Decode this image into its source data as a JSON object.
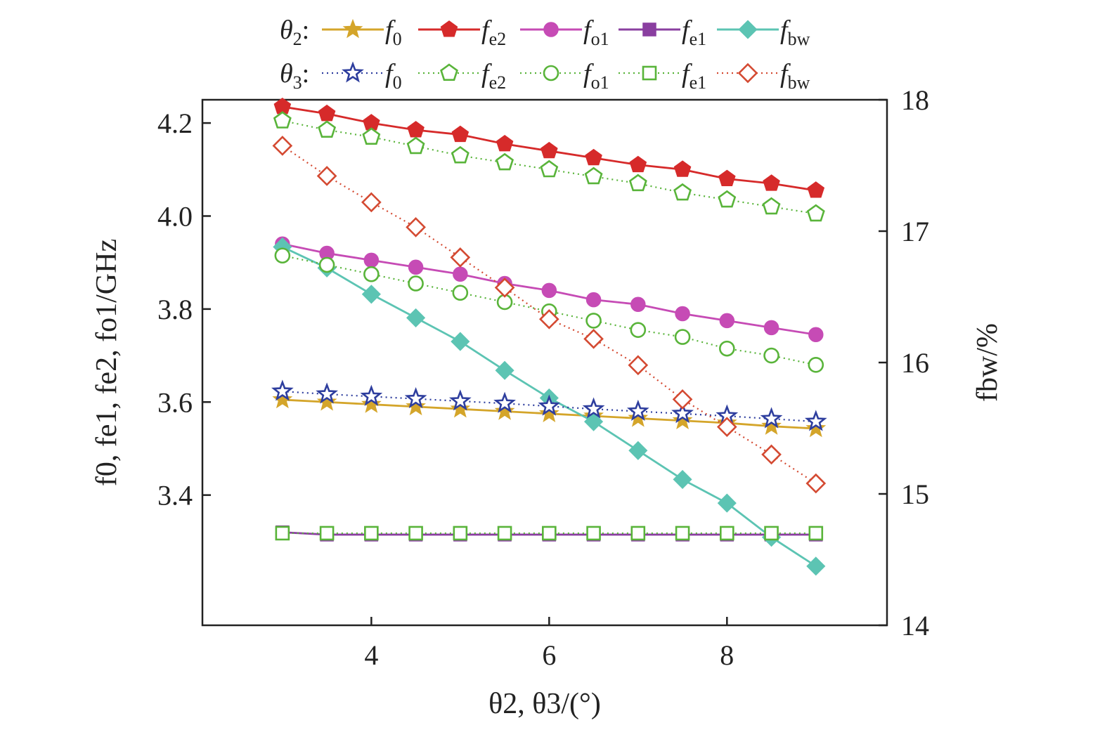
{
  "chart_data": {
    "type": "line",
    "title": "",
    "xlabel": "θ2, θ3/(°)",
    "ylabel_left": "f0, fe1, fe2, fo1/GHz",
    "ylabel_right": "fbw/%",
    "xlim": [
      2.1,
      9.8
    ],
    "ylim_left": [
      3.12,
      4.25
    ],
    "ylim_right": [
      14,
      18
    ],
    "x_ticks": [
      4,
      6,
      8
    ],
    "y_ticks_left": [
      "3.4",
      "3.6",
      "3.8",
      "4.0",
      "4.2"
    ],
    "y_ticks_left_values": [
      3.4,
      3.6,
      3.8,
      4.0,
      4.2
    ],
    "y_ticks_right": [
      "14",
      "15",
      "16",
      "17",
      "18"
    ],
    "y_ticks_right_values": [
      14,
      15,
      16,
      17,
      18
    ],
    "legend_placement": "top",
    "legend_rows": [
      {
        "label": "θ2:",
        "base": "θ",
        "subscript": "2"
      },
      {
        "label": "θ3:",
        "base": "θ",
        "subscript": "3"
      }
    ],
    "x": [
      3,
      3.5,
      4,
      4.5,
      5,
      5.5,
      6,
      6.5,
      7,
      7.5,
      8,
      8.5,
      9
    ],
    "series": [
      {
        "name": "θ2: f0",
        "legend_base": "f",
        "legend_sub": "0",
        "group": "θ2",
        "axis": "left",
        "color": "#d4a52a",
        "marker": "star-filled",
        "dash": "solid",
        "values": [
          3.605,
          3.6,
          3.595,
          3.59,
          3.585,
          3.58,
          3.575,
          3.57,
          3.565,
          3.56,
          3.555,
          3.548,
          3.543
        ]
      },
      {
        "name": "θ2: fe2",
        "legend_base": "f",
        "legend_sub": "e2",
        "group": "θ2",
        "axis": "left",
        "color": "#d62a2a",
        "marker": "pentagon-filled",
        "dash": "solid",
        "values": [
          4.235,
          4.22,
          4.2,
          4.185,
          4.175,
          4.155,
          4.14,
          4.125,
          4.11,
          4.1,
          4.08,
          4.07,
          4.055
        ]
      },
      {
        "name": "θ2: fo1",
        "legend_base": "f",
        "legend_sub": "o1",
        "group": "θ2",
        "axis": "left",
        "color": "#c64bb5",
        "marker": "circle-filled",
        "dash": "solid",
        "values": [
          3.94,
          3.92,
          3.905,
          3.89,
          3.875,
          3.855,
          3.84,
          3.82,
          3.81,
          3.79,
          3.775,
          3.76,
          3.745
        ]
      },
      {
        "name": "θ2: fe1",
        "legend_base": "f",
        "legend_sub": "e1",
        "group": "θ2",
        "axis": "left",
        "color": "#8a3fa0",
        "marker": "square-filled",
        "dash": "solid",
        "values": [
          3.32,
          3.315,
          3.315,
          3.315,
          3.315,
          3.315,
          3.315,
          3.315,
          3.315,
          3.315,
          3.315,
          3.315,
          3.315
        ]
      },
      {
        "name": "θ2: fbw",
        "legend_base": "f",
        "legend_sub": "bw",
        "group": "θ2",
        "axis": "right",
        "color": "#5cc4b3",
        "marker": "diamond-filled",
        "dash": "solid",
        "values": [
          16.88,
          16.72,
          16.52,
          16.34,
          16.16,
          15.94,
          15.73,
          15.55,
          15.33,
          15.11,
          14.93,
          14.67,
          14.45
        ]
      },
      {
        "name": "θ3: f0",
        "legend_base": "f",
        "legend_sub": "0",
        "group": "θ3",
        "axis": "left",
        "color": "#2e3e9e",
        "marker": "star-open",
        "dash": "dotted",
        "values": [
          3.623,
          3.617,
          3.612,
          3.607,
          3.602,
          3.597,
          3.591,
          3.585,
          3.58,
          3.575,
          3.57,
          3.564,
          3.558
        ]
      },
      {
        "name": "θ3: fe2",
        "legend_base": "f",
        "legend_sub": "e2",
        "group": "θ3",
        "axis": "left",
        "color": "#59b43a",
        "marker": "pentagon-open",
        "dash": "dotted",
        "values": [
          4.205,
          4.185,
          4.17,
          4.15,
          4.13,
          4.115,
          4.1,
          4.085,
          4.07,
          4.05,
          4.035,
          4.02,
          4.005
        ]
      },
      {
        "name": "θ3: fo1",
        "legend_base": "f",
        "legend_sub": "o1",
        "group": "θ3",
        "axis": "left",
        "color": "#59b43a",
        "marker": "circle-open",
        "dash": "dotted",
        "values": [
          3.915,
          3.895,
          3.875,
          3.855,
          3.835,
          3.815,
          3.795,
          3.775,
          3.755,
          3.74,
          3.715,
          3.7,
          3.68
        ]
      },
      {
        "name": "θ3: fe1",
        "legend_base": "f",
        "legend_sub": "e1",
        "group": "θ3",
        "axis": "left",
        "color": "#59b43a",
        "marker": "square-open",
        "dash": "dotted",
        "values": [
          3.318,
          3.318,
          3.318,
          3.318,
          3.318,
          3.318,
          3.318,
          3.318,
          3.318,
          3.318,
          3.318,
          3.318,
          3.318
        ]
      },
      {
        "name": "θ3: fbw",
        "legend_base": "f",
        "legend_sub": "bw",
        "group": "θ3",
        "axis": "right",
        "color": "#d44a32",
        "marker": "diamond-open",
        "dash": "dotted",
        "values": [
          17.65,
          17.42,
          17.22,
          17.03,
          16.8,
          16.57,
          16.33,
          16.18,
          15.98,
          15.72,
          15.51,
          15.3,
          15.08
        ]
      }
    ],
    "grid": false
  }
}
